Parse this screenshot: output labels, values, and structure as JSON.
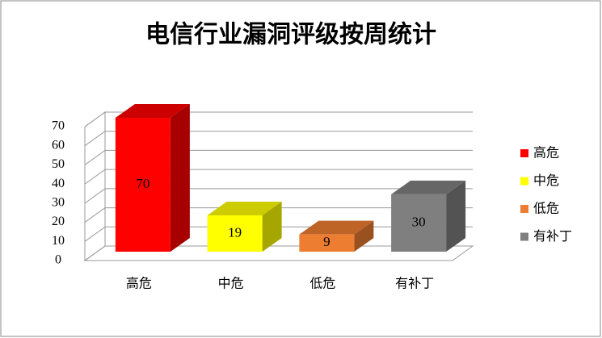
{
  "chart_data": {
    "type": "bar3d",
    "title": "电信行业漏洞评级按周统计",
    "categories": [
      "高危",
      "中危",
      "低危",
      "有补丁"
    ],
    "values": [
      70,
      19,
      9,
      30
    ],
    "colors": [
      "#ff0000",
      "#ffff00",
      "#ed7d31",
      "#7f7f7f"
    ],
    "ylim": [
      0,
      70
    ],
    "yticks": [
      0,
      10,
      20,
      30,
      40,
      50,
      60,
      70
    ],
    "grid": true,
    "legend": "right"
  }
}
